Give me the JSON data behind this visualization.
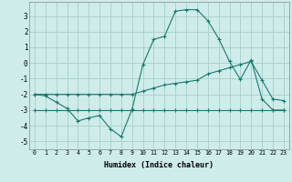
{
  "xlabel": "Humidex (Indice chaleur)",
  "background_color": "#cdecea",
  "grid_color": "#aacfcc",
  "line_color": "#1a7a6e",
  "x_values": [
    0,
    1,
    2,
    3,
    4,
    5,
    6,
    7,
    8,
    9,
    10,
    11,
    12,
    13,
    14,
    15,
    16,
    17,
    18,
    19,
    20,
    21,
    22,
    23
  ],
  "line1": [
    -2.0,
    -2.1,
    -2.5,
    -2.9,
    -3.7,
    -3.5,
    -3.35,
    -4.2,
    -4.7,
    -2.95,
    -0.1,
    1.5,
    1.7,
    3.3,
    3.4,
    3.4,
    2.7,
    1.55,
    0.1,
    -1.05,
    0.2,
    -2.3,
    -3.0,
    -3.0
  ],
  "line2": [
    -2.0,
    -2.0,
    -2.0,
    -2.0,
    -2.0,
    -2.0,
    -2.0,
    -2.0,
    -2.0,
    -2.0,
    -1.8,
    -1.6,
    -1.4,
    -1.3,
    -1.2,
    -1.1,
    -0.7,
    -0.5,
    -0.3,
    -0.1,
    0.1,
    -1.1,
    -2.3,
    -2.4
  ],
  "line3": [
    -3.0,
    -3.0,
    -3.0,
    -3.0,
    -3.0,
    -3.0,
    -3.0,
    -3.0,
    -3.0,
    -3.0,
    -3.0,
    -3.0,
    -3.0,
    -3.0,
    -3.0,
    -3.0,
    -3.0,
    -3.0,
    -3.0,
    -3.0,
    -3.0,
    -3.0,
    -3.0,
    -3.0
  ],
  "ylim": [
    -5.5,
    3.9
  ],
  "xlim": [
    -0.5,
    23.5
  ],
  "yticks": [
    -5,
    -4,
    -3,
    -2,
    -1,
    0,
    1,
    2,
    3
  ],
  "xticks": [
    0,
    1,
    2,
    3,
    4,
    5,
    6,
    7,
    8,
    9,
    10,
    11,
    12,
    13,
    14,
    15,
    16,
    17,
    18,
    19,
    20,
    21,
    22,
    23
  ]
}
